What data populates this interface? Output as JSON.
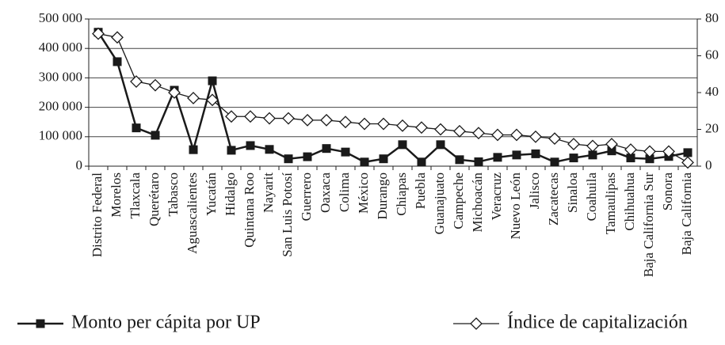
{
  "chart_data": {
    "type": "line",
    "categories": [
      "Distrito Federal",
      "Morelos",
      "Tlaxcala",
      "Querétaro",
      "Tabasco",
      "Aguascalientes",
      "Yucatán",
      "Hidalgo",
      "Quintana Roo",
      "Nayarit",
      "San Luis Potosí",
      "Guerrero",
      "Oaxaca",
      "Colima",
      "México",
      "Durango",
      "Chiapas",
      "Puebla",
      "Guanajuato",
      "Campeche",
      "Michoacán",
      "Veracruz",
      "Nuevo León",
      "Jalisco",
      "Zacatecas",
      "Sinaloa",
      "Coahuila",
      "Tamaulipas",
      "Chihuahua",
      "Baja California Sur",
      "Sonora",
      "Baja California"
    ],
    "series": [
      {
        "name": "Monto per cápita por UP",
        "color": "#1a1a1a",
        "marker": "square",
        "values": [
          455000,
          355000,
          130000,
          105000,
          258000,
          56000,
          290000,
          54000,
          70000,
          57000,
          25000,
          32000,
          60000,
          48000,
          14000,
          25000,
          73000,
          14000,
          73000,
          22000,
          15000,
          30000,
          38000,
          42000,
          14000,
          28000,
          38000,
          52000,
          28000,
          25000,
          33000,
          46000
        ]
      },
      {
        "name": "Índice de capitalización",
        "color": "#1a1a1a",
        "marker": "diamond",
        "axis": "y2",
        "values": [
          72,
          70,
          46,
          44,
          40,
          37,
          36,
          27,
          27,
          26,
          26,
          25,
          25,
          24,
          23,
          23,
          22,
          21,
          20,
          19,
          18,
          17,
          17,
          16,
          15,
          12,
          11,
          12,
          9,
          8,
          8,
          2
        ]
      }
    ],
    "ylim": [
      0,
      500000
    ],
    "yticks": [
      0,
      {
        "value": 100000,
        "label": "100 000"
      },
      {
        "value": 200000,
        "label": "200 000"
      },
      {
        "value": 300000,
        "label": "300 000"
      },
      {
        "value": 400000,
        "label": "400 000"
      },
      {
        "value": 500000,
        "label": "500 000"
      }
    ],
    "y2lim": [
      0,
      80
    ],
    "y2ticks": [
      0,
      20,
      40,
      60,
      80
    ],
    "grid": true,
    "legend": "bottom"
  }
}
